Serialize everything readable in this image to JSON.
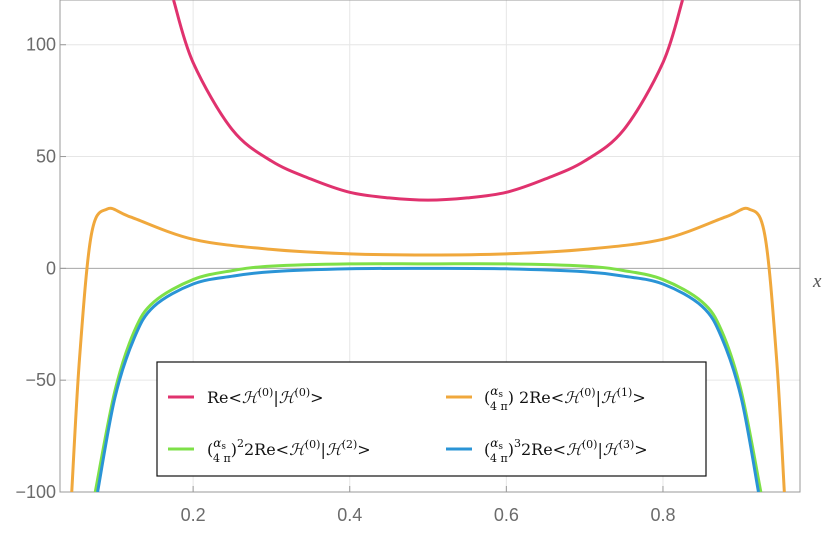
{
  "chart_data": {
    "type": "line",
    "title": "",
    "xlabel": "x",
    "ylabel": "",
    "xlim": [
      0.03,
      0.975
    ],
    "ylim": [
      -100,
      120
    ],
    "grid": true,
    "x_ticks": [
      "0.2",
      "0.4",
      "0.6",
      "0.8"
    ],
    "y_ticks": [
      "100",
      "50",
      "0",
      "-50",
      "-100"
    ],
    "legend_position": "bottom-center",
    "series": [
      {
        "name": "Re<H(0)|H(0)>",
        "color": "#e0326e",
        "x": [
          0.175,
          0.2,
          0.25,
          0.3,
          0.35,
          0.4,
          0.45,
          0.5,
          0.55,
          0.6,
          0.65,
          0.7,
          0.75,
          0.8,
          0.825
        ],
        "y": [
          120,
          92,
          62,
          48,
          40,
          34,
          31.5,
          30.5,
          31.5,
          34,
          40,
          48,
          62,
          92,
          120
        ]
      },
      {
        "name": "(αs/4π) 2Re<H(0)|H(1)>",
        "color": "#f0a83c",
        "x": [
          0.045,
          0.055,
          0.07,
          0.09,
          0.12,
          0.2,
          0.3,
          0.4,
          0.5,
          0.6,
          0.7,
          0.8,
          0.88,
          0.91,
          0.93,
          0.945,
          0.955
        ],
        "y": [
          -100,
          -40,
          15,
          26.5,
          23,
          13,
          8.5,
          6.5,
          6,
          6.5,
          8.5,
          13,
          23,
          26.5,
          15,
          -40,
          -100
        ]
      },
      {
        "name": "(αs/4π)^2 2Re<H(0)|H(2)>",
        "color": "#7ee048",
        "x": [
          0.075,
          0.1,
          0.125,
          0.15,
          0.2,
          0.25,
          0.3,
          0.4,
          0.5,
          0.6,
          0.7,
          0.75,
          0.8,
          0.85,
          0.875,
          0.9,
          0.925
        ],
        "y": [
          -100,
          -55,
          -28,
          -15,
          -5,
          -1,
          1,
          2,
          2,
          2,
          1,
          -1,
          -5,
          -15,
          -28,
          -55,
          -100
        ]
      },
      {
        "name": "(αs/4π)^3 2Re<H(0)|H(3)>",
        "color": "#2a94d6",
        "x": [
          0.078,
          0.1,
          0.125,
          0.15,
          0.2,
          0.25,
          0.3,
          0.4,
          0.5,
          0.6,
          0.7,
          0.75,
          0.8,
          0.85,
          0.875,
          0.9,
          0.922
        ],
        "y": [
          -100,
          -58,
          -31,
          -17,
          -7,
          -3.5,
          -1.5,
          -0.2,
          0,
          -0.2,
          -1.5,
          -3.5,
          -7,
          -17,
          -31,
          -58,
          -100
        ]
      }
    ]
  }
}
